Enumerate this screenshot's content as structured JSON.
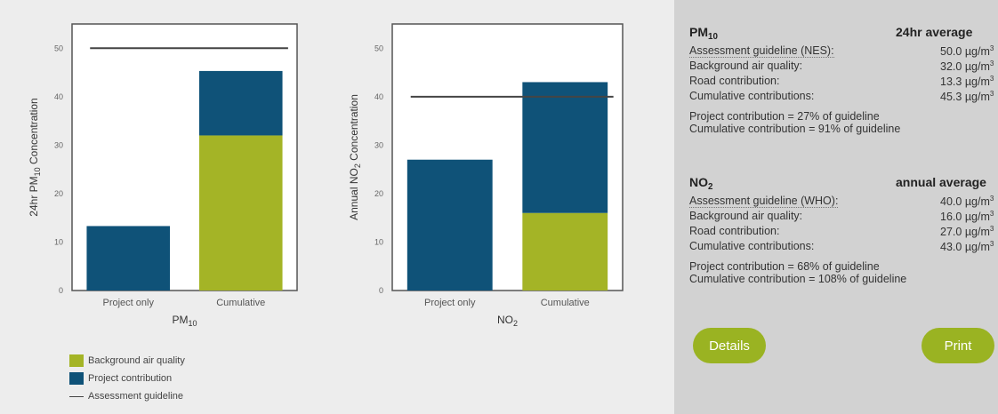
{
  "colors": {
    "background_air_quality": "#a4b426",
    "project_contribution": "#0f5278",
    "guideline_line": "#444444",
    "button": "#9ab322"
  },
  "chart_data": [
    {
      "type": "bar",
      "stacked": true,
      "categories": [
        "Project only",
        "Cumulative"
      ],
      "xlabel": "PM10",
      "ylabel": "24hr PM10 Concentration",
      "ylim": [
        0,
        55
      ],
      "yticks": [
        0,
        10,
        20,
        30,
        40,
        50
      ],
      "grid": false,
      "series": [
        {
          "name": "Background air quality",
          "values": [
            0,
            32.0
          ]
        },
        {
          "name": "Project contribution",
          "values": [
            13.3,
            13.3
          ]
        }
      ],
      "guideline": {
        "name": "Assessment guideline",
        "value": 50.0
      }
    },
    {
      "type": "bar",
      "stacked": true,
      "categories": [
        "Project only",
        "Cumulative"
      ],
      "xlabel": "NO2",
      "ylabel": "Annual NO2 Concentration",
      "ylim": [
        0,
        55
      ],
      "yticks": [
        0,
        10,
        20,
        30,
        40,
        50
      ],
      "grid": false,
      "series": [
        {
          "name": "Background air quality",
          "values": [
            0,
            16.0
          ]
        },
        {
          "name": "Project contribution",
          "values": [
            27.0,
            27.0
          ]
        }
      ],
      "guideline": {
        "name": "Assessment guideline",
        "value": 40.0
      }
    }
  ],
  "charts_text": {
    "pm10_xlabel_main": "PM",
    "pm10_xlabel_sub": "10",
    "pm10_ylabel_pre": "24hr PM",
    "pm10_ylabel_sub": "10",
    "pm10_ylabel_post": " Concentration",
    "no2_xlabel_main": "NO",
    "no2_xlabel_sub": "2",
    "no2_ylabel_pre": "Annual NO",
    "no2_ylabel_sub": "2",
    "no2_ylabel_post": " Concentration"
  },
  "legend": {
    "items": [
      {
        "label": "Background air quality"
      },
      {
        "label": "Project contribution"
      },
      {
        "label": "Assessment guideline"
      }
    ]
  },
  "panel": {
    "pm10": {
      "title_main": "PM",
      "title_sub": "10",
      "period": "24hr average",
      "unit_main": "µg/m",
      "unit_sup": "3",
      "rows": [
        {
          "label": "Assessment guideline (NES):",
          "value": "50.0"
        },
        {
          "label": "Background air quality:",
          "value": "32.0"
        },
        {
          "label": "Road contribution:",
          "value": "13.3"
        },
        {
          "label": "Cumulative contributions:",
          "value": "45.3"
        }
      ],
      "note1": "Project contribution = 27% of guideline",
      "note2": "Cumulative contribution = 91% of guideline"
    },
    "no2": {
      "title_main": "NO",
      "title_sub": "2",
      "period": "annual average",
      "unit_main": "µg/m",
      "unit_sup": "3",
      "rows": [
        {
          "label": "Assessment guideline (WHO):",
          "value": "40.0"
        },
        {
          "label": "Background air quality:",
          "value": "16.0"
        },
        {
          "label": "Road contribution:",
          "value": "27.0"
        },
        {
          "label": "Cumulative contributions:",
          "value": "43.0"
        }
      ],
      "note1": "Project contribution = 68% of guideline",
      "note2": "Cumulative contribution = 108% of guideline"
    },
    "details_label": "Details",
    "print_label": "Print"
  }
}
